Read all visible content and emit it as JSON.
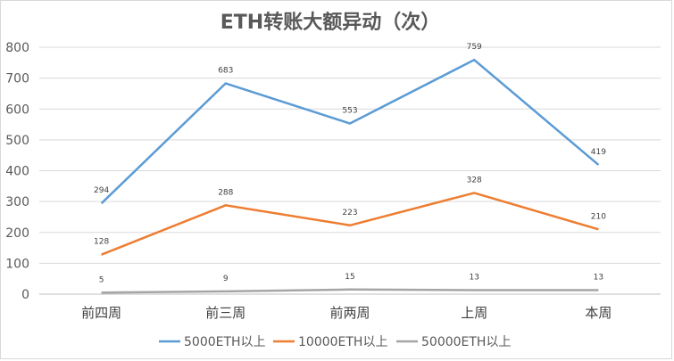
{
  "chart_data": {
    "type": "line",
    "title": "ETH转账大额异动（次）",
    "categories": [
      "前四周",
      "前三周",
      "前两周",
      "上周",
      "本周"
    ],
    "ylim": [
      0,
      800
    ],
    "yticks": [
      0,
      100,
      200,
      300,
      400,
      500,
      600,
      700,
      800
    ],
    "grid": true,
    "legend_position": "bottom",
    "series": [
      {
        "name": "5000ETH以上",
        "color": "#5b9bd5",
        "values": [
          294,
          683,
          553,
          759,
          419
        ]
      },
      {
        "name": "10000ETH以上",
        "color": "#ed7d31",
        "values": [
          128,
          288,
          223,
          328,
          210
        ]
      },
      {
        "name": "50000ETH以上",
        "color": "#a5a5a5",
        "values": [
          5,
          9,
          15,
          13,
          13
        ]
      }
    ]
  }
}
